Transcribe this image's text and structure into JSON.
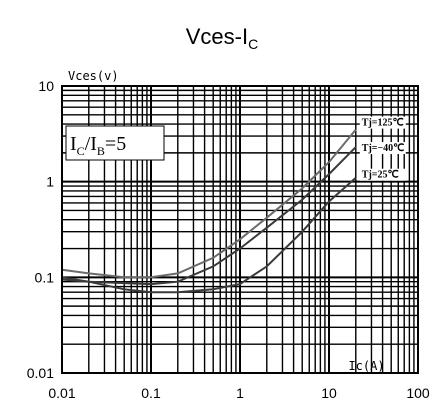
{
  "chart_data": {
    "type": "line",
    "title": {
      "main": "Vces-I",
      "sub": "C"
    },
    "ylabel": "Vces(v)",
    "xlabel": "Ic(A)",
    "x_scale": "log",
    "y_scale": "log",
    "xlim": [
      0.01,
      100
    ],
    "ylim": [
      0.01,
      10
    ],
    "x_ticks": [
      "0.01",
      "0.1",
      "1",
      "10",
      "100"
    ],
    "y_ticks": [
      "0.01",
      "0.1",
      "1",
      "10"
    ],
    "grid": true,
    "annotation": {
      "main": "I",
      "sub1": "C",
      "slash": "/I",
      "sub2": "B",
      "tail": "=5"
    },
    "series": [
      {
        "name": "Tj=125℃",
        "x": [
          0.01,
          0.02,
          0.05,
          0.1,
          0.2,
          0.5,
          1,
          2,
          5,
          10,
          20
        ],
        "y": [
          0.12,
          0.11,
          0.1,
          0.1,
          0.11,
          0.16,
          0.25,
          0.42,
          0.85,
          1.6,
          3.5
        ]
      },
      {
        "name": "Tj=−40℃",
        "x": [
          0.01,
          0.02,
          0.05,
          0.1,
          0.2,
          0.5,
          1,
          2,
          5,
          10,
          20
        ],
        "y": [
          0.095,
          0.09,
          0.087,
          0.085,
          0.09,
          0.13,
          0.2,
          0.33,
          0.65,
          1.2,
          2.3
        ]
      },
      {
        "name": "Tj=25℃",
        "x": [
          0.01,
          0.02,
          0.05,
          0.1,
          0.2,
          0.5,
          1,
          2,
          5,
          10,
          20
        ],
        "y": [
          0.1,
          0.09,
          0.075,
          0.07,
          0.07,
          0.075,
          0.085,
          0.13,
          0.3,
          0.62,
          1.1
        ]
      }
    ]
  }
}
